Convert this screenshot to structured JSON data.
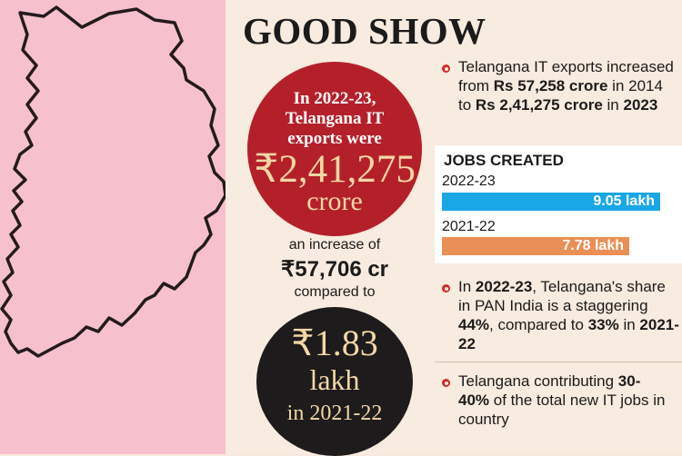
{
  "title": "GOOD SHOW",
  "red_circle": {
    "line1": "In 2022-23,",
    "line2": "Telangana IT",
    "line3": "exports were",
    "amount": "₹2,41,275",
    "unit": "crore"
  },
  "increase": {
    "label": "an increase of",
    "amount": "₹57,706 cr",
    "compared": "compared to"
  },
  "black_circle": {
    "amount": "₹1.83",
    "unit": "lakh",
    "year": "in 2021-22"
  },
  "facts": {
    "fact1": {
      "p1": "Telangana IT exports increased from ",
      "b1": "Rs 57,258 crore",
      "p2": " in 2014 to ",
      "b2": "Rs 2,41,275 crore",
      "p3": " in ",
      "b3": "2023"
    },
    "fact2": {
      "p1": "In ",
      "b1": "2022-23",
      "p2": ", Telangana's share in PAN India is a staggering ",
      "b2": "44%",
      "p3": ", compared to ",
      "b3": "33%",
      "p4": " in ",
      "b4": "2021-22"
    },
    "fact3": {
      "p1": "Telangana contributing ",
      "b1": "30-40%",
      "p2": " of the total new IT jobs in country"
    }
  },
  "jobs": {
    "title": "JOBS CREATED",
    "rows": [
      {
        "year": "2022-23",
        "label": "9.05 lakh",
        "value": 9.05,
        "color": "#19a7e5"
      },
      {
        "year": "2021-22",
        "label": "7.78 lakh",
        "value": 7.78,
        "color": "#ea8f55"
      }
    ]
  },
  "colors": {
    "map_background": "#f6c1cd",
    "panel_background": "#f8ebdf",
    "red_circle": "#b4202a",
    "black_circle": "#1e1b1c",
    "highlight_text": "#f2d7a6",
    "bullet": "#d12a2a"
  }
}
